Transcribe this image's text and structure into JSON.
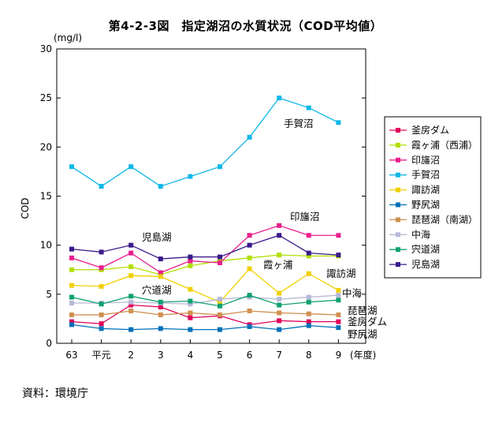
{
  "title": "第4-2-3図　指定湖沼の水質状況（COD平均値）",
  "source": "資料：環境庁",
  "chart_data": {
    "type": "line",
    "unit": "(mg/l)",
    "ylabel": "COD",
    "xlabel_suffix": "(年度)",
    "categories": [
      "63",
      "平元",
      "2",
      "3",
      "4",
      "5",
      "6",
      "7",
      "8",
      "9"
    ],
    "ylim": [
      0,
      30
    ],
    "yticks": [
      0,
      5,
      10,
      15,
      20,
      25,
      30
    ],
    "legend_position": "right",
    "series": [
      {
        "name": "釜房ダム",
        "color": "#e0005a",
        "marker": "square",
        "values": [
          2.2,
          2.0,
          3.9,
          3.7,
          2.6,
          2.8,
          1.9,
          2.3,
          2.2,
          2.2
        ]
      },
      {
        "name": "霞ヶ浦（西浦）",
        "color": "#b0e000",
        "marker": "square",
        "values": [
          7.5,
          7.5,
          7.8,
          7.0,
          7.9,
          8.4,
          8.7,
          9.0,
          8.9,
          8.9
        ]
      },
      {
        "name": "印旛沼",
        "color": "#e81e8c",
        "marker": "square",
        "values": [
          8.7,
          7.7,
          9.2,
          7.2,
          8.4,
          8.2,
          11.0,
          12.0,
          11.0,
          11.0
        ]
      },
      {
        "name": "手賀沼",
        "color": "#10b8e8",
        "marker": "square",
        "values": [
          18.0,
          16.0,
          18.0,
          16.0,
          17.0,
          18.0,
          21.0,
          25.0,
          24.0,
          22.5
        ]
      },
      {
        "name": "諏訪湖",
        "color": "#f0d000",
        "marker": "square",
        "values": [
          5.9,
          5.8,
          6.9,
          6.8,
          5.5,
          4.2,
          7.6,
          5.1,
          7.1,
          5.4
        ]
      },
      {
        "name": "野尻湖",
        "color": "#0070b8",
        "marker": "square",
        "values": [
          1.9,
          1.5,
          1.4,
          1.5,
          1.4,
          1.4,
          1.7,
          1.4,
          1.8,
          1.6
        ]
      },
      {
        "name": "琵琶湖（南湖）",
        "color": "#d09050",
        "marker": "square",
        "values": [
          2.9,
          2.9,
          3.3,
          2.9,
          3.1,
          2.9,
          3.3,
          3.1,
          3.0,
          2.9
        ]
      },
      {
        "name": "中海",
        "color": "#b8b8d8",
        "marker": "square",
        "values": [
          4.1,
          4.1,
          4.2,
          4.1,
          4.0,
          4.5,
          4.7,
          4.5,
          4.7,
          4.9
        ]
      },
      {
        "name": "宍道湖",
        "color": "#10a070",
        "marker": "square",
        "values": [
          4.7,
          4.0,
          4.8,
          4.2,
          4.3,
          3.8,
          4.9,
          3.9,
          4.2,
          4.4
        ]
      },
      {
        "name": "児島湖",
        "color": "#3a1a8a",
        "marker": "square",
        "values": [
          9.6,
          9.3,
          10.0,
          8.6,
          8.8,
          8.8,
          10.0,
          11.0,
          9.2,
          9.0
        ]
      }
    ],
    "annotations": [
      {
        "text": "手賀沼"
      },
      {
        "text": "印旛沼"
      },
      {
        "text": "児島湖"
      },
      {
        "text": "霞ヶ浦"
      },
      {
        "text": "諏訪湖"
      },
      {
        "text": "穴道湖"
      },
      {
        "text": "中海"
      },
      {
        "text": "琵琶湖"
      },
      {
        "text": "釜房ダム"
      },
      {
        "text": "野尻湖"
      }
    ]
  }
}
